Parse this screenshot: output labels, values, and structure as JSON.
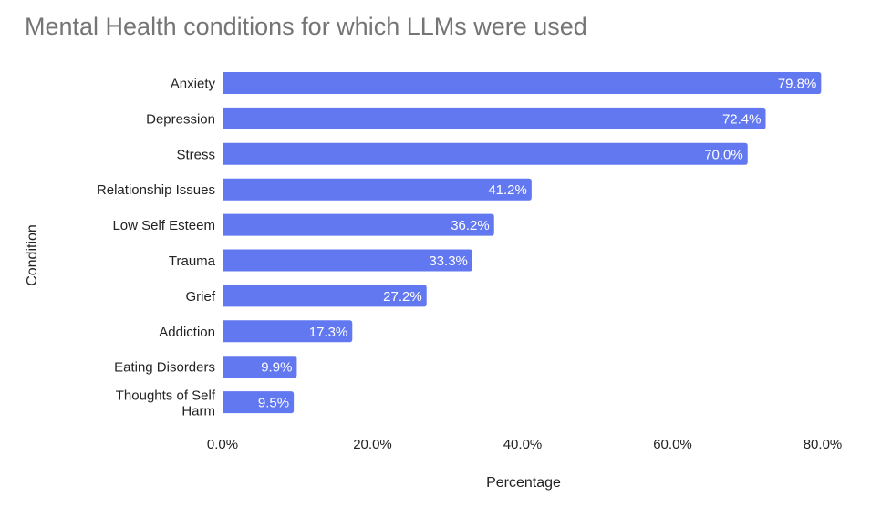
{
  "chart_data": {
    "type": "bar",
    "orientation": "horizontal",
    "title": "Mental Health conditions for which LLMs were used",
    "xlabel": "Percentage",
    "ylabel": "Condition",
    "categories": [
      "Anxiety",
      "Depression",
      "Stress",
      "Relationship Issues",
      "Low Self Esteem",
      "Trauma",
      "Grief",
      "Addiction",
      "Eating Disorders",
      "Thoughts of Self Harm"
    ],
    "values": [
      79.8,
      72.4,
      70.0,
      41.2,
      36.2,
      33.3,
      27.2,
      17.3,
      9.9,
      9.5
    ],
    "data_labels": [
      "79.8%",
      "72.4%",
      "70.0%",
      "41.2%",
      "36.2%",
      "33.3%",
      "27.2%",
      "17.3%",
      "9.9%",
      "9.5%"
    ],
    "xlim": [
      0,
      80
    ],
    "xticks": [
      0,
      20,
      40,
      60,
      80
    ],
    "xtick_labels": [
      "0.0%",
      "20.0%",
      "40.0%",
      "60.0%",
      "80.0%"
    ],
    "grid": false,
    "bar_color": "#6278F0"
  }
}
